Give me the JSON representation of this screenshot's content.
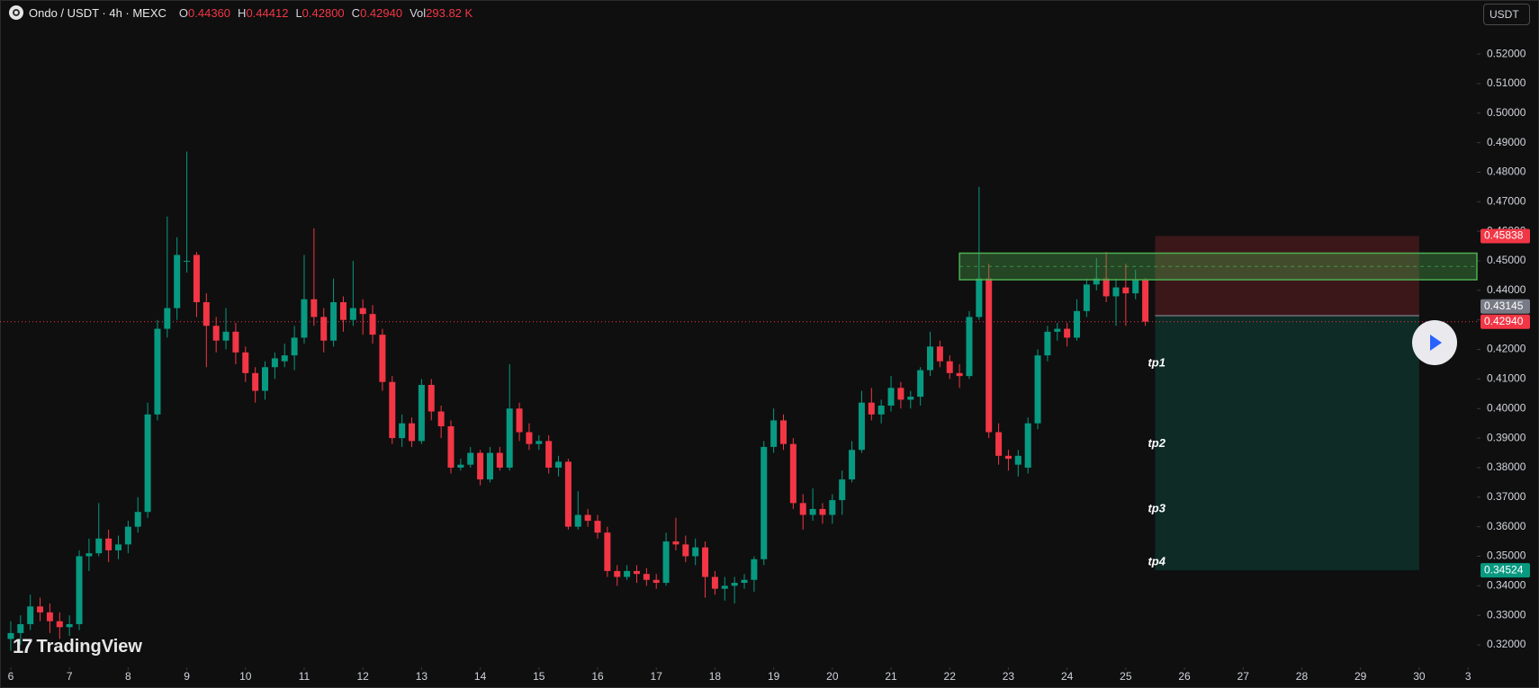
{
  "chart_data": {
    "type": "candlestick",
    "legend": {
      "symbol": "Ondo / USDT · 4h · MEXC",
      "items": [
        {
          "key": "O",
          "value": "0.44360"
        },
        {
          "key": "H",
          "value": "0.44412"
        },
        {
          "key": "L",
          "value": "0.42800"
        },
        {
          "key": "C",
          "value": "0.42940"
        },
        {
          "key": "Vol",
          "value": "293.82 K"
        }
      ]
    },
    "currency": "USDT",
    "watermark": "TradingView",
    "up_color": "#089981",
    "down_color": "#f23645",
    "open": [
      0.322,
      0.324,
      0.327,
      0.333,
      0.331,
      0.328,
      0.326,
      0.327,
      0.35,
      0.351,
      0.356,
      0.352,
      0.354,
      0.36,
      0.365,
      0.398,
      0.427,
      0.434,
      0.45,
      0.452,
      0.436,
      0.428,
      0.423,
      0.426,
      0.419,
      0.412,
      0.406,
      0.414,
      0.416,
      0.418,
      0.424,
      0.437,
      0.431,
      0.423,
      0.436,
      0.43,
      0.434,
      0.432,
      0.425,
      0.409,
      0.39,
      0.395,
      0.389,
      0.408,
      0.399,
      0.394,
      0.38,
      0.381,
      0.385,
      0.376,
      0.385,
      0.38,
      0.4,
      0.392,
      0.388,
      0.389,
      0.38,
      0.382,
      0.36,
      0.364,
      0.362,
      0.358,
      0.345,
      0.343,
      0.345,
      0.344,
      0.342,
      0.341,
      0.355,
      0.354,
      0.35,
      0.353,
      0.343,
      0.339,
      0.34,
      0.341,
      0.342,
      0.349,
      0.387,
      0.396,
      0.388,
      0.368,
      0.364,
      0.366,
      0.364,
      0.369,
      0.376,
      0.386,
      0.402,
      0.398,
      0.401,
      0.407,
      0.403,
      0.404,
      0.413,
      0.421,
      0.416,
      0.412,
      0.411,
      0.431,
      0.444,
      0.392,
      0.384,
      0.381,
      0.38,
      0.395,
      0.418,
      0.426,
      0.427,
      0.424,
      0.433,
      0.442,
      0.444,
      0.438,
      0.441,
      0.439,
      0.4436
    ],
    "close": [
      0.324,
      0.327,
      0.333,
      0.331,
      0.328,
      0.326,
      0.327,
      0.35,
      0.351,
      0.356,
      0.352,
      0.354,
      0.36,
      0.365,
      0.398,
      0.427,
      0.434,
      0.452,
      0.45,
      0.436,
      0.428,
      0.423,
      0.426,
      0.419,
      0.412,
      0.406,
      0.414,
      0.417,
      0.418,
      0.424,
      0.437,
      0.431,
      0.423,
      0.436,
      0.43,
      0.434,
      0.432,
      0.425,
      0.409,
      0.39,
      0.395,
      0.389,
      0.408,
      0.399,
      0.394,
      0.38,
      0.381,
      0.385,
      0.376,
      0.385,
      0.38,
      0.4,
      0.392,
      0.388,
      0.389,
      0.38,
      0.382,
      0.36,
      0.364,
      0.362,
      0.358,
      0.345,
      0.343,
      0.345,
      0.344,
      0.342,
      0.341,
      0.355,
      0.354,
      0.35,
      0.353,
      0.343,
      0.339,
      0.34,
      0.341,
      0.342,
      0.349,
      0.387,
      0.396,
      0.388,
      0.368,
      0.364,
      0.366,
      0.364,
      0.369,
      0.376,
      0.386,
      0.402,
      0.398,
      0.401,
      0.407,
      0.403,
      0.404,
      0.413,
      0.421,
      0.416,
      0.412,
      0.411,
      0.431,
      0.444,
      0.392,
      0.384,
      0.383,
      0.384,
      0.395,
      0.418,
      0.426,
      0.427,
      0.424,
      0.433,
      0.442,
      0.444,
      0.438,
      0.441,
      0.439,
      0.4436,
      0.4294
    ],
    "high": [
      0.328,
      0.33,
      0.337,
      0.336,
      0.334,
      0.331,
      0.33,
      0.352,
      0.356,
      0.368,
      0.359,
      0.357,
      0.362,
      0.37,
      0.402,
      0.43,
      0.465,
      0.458,
      0.487,
      0.453,
      0.439,
      0.431,
      0.434,
      0.429,
      0.421,
      0.414,
      0.416,
      0.419,
      0.422,
      0.428,
      0.452,
      0.461,
      0.434,
      0.444,
      0.438,
      0.45,
      0.437,
      0.435,
      0.427,
      0.411,
      0.398,
      0.397,
      0.41,
      0.41,
      0.401,
      0.396,
      0.383,
      0.387,
      0.386,
      0.387,
      0.387,
      0.415,
      0.402,
      0.395,
      0.391,
      0.391,
      0.384,
      0.383,
      0.372,
      0.366,
      0.364,
      0.36,
      0.347,
      0.347,
      0.347,
      0.346,
      0.344,
      0.358,
      0.363,
      0.357,
      0.356,
      0.355,
      0.345,
      0.343,
      0.343,
      0.344,
      0.35,
      0.389,
      0.4,
      0.398,
      0.39,
      0.371,
      0.373,
      0.368,
      0.371,
      0.379,
      0.389,
      0.406,
      0.407,
      0.403,
      0.411,
      0.409,
      0.406,
      0.414,
      0.426,
      0.423,
      0.418,
      0.415,
      0.433,
      0.475,
      0.449,
      0.395,
      0.386,
      0.386,
      0.397,
      0.42,
      0.428,
      0.429,
      0.429,
      0.437,
      0.444,
      0.451,
      0.453,
      0.444,
      0.449,
      0.447,
      0.44412
    ],
    "low": [
      0.318,
      0.32,
      0.325,
      0.328,
      0.324,
      0.322,
      0.323,
      0.325,
      0.345,
      0.35,
      0.348,
      0.349,
      0.351,
      0.358,
      0.363,
      0.396,
      0.424,
      0.43,
      0.446,
      0.431,
      0.414,
      0.419,
      0.42,
      0.415,
      0.409,
      0.402,
      0.403,
      0.41,
      0.414,
      0.413,
      0.422,
      0.428,
      0.419,
      0.421,
      0.426,
      0.428,
      0.425,
      0.422,
      0.406,
      0.388,
      0.387,
      0.387,
      0.388,
      0.396,
      0.39,
      0.378,
      0.379,
      0.38,
      0.374,
      0.375,
      0.379,
      0.379,
      0.389,
      0.386,
      0.386,
      0.378,
      0.377,
      0.359,
      0.359,
      0.36,
      0.356,
      0.343,
      0.34,
      0.342,
      0.341,
      0.34,
      0.339,
      0.34,
      0.352,
      0.348,
      0.347,
      0.336,
      0.337,
      0.335,
      0.334,
      0.339,
      0.338,
      0.347,
      0.385,
      0.386,
      0.366,
      0.359,
      0.362,
      0.361,
      0.361,
      0.364,
      0.375,
      0.385,
      0.396,
      0.395,
      0.399,
      0.4,
      0.4,
      0.401,
      0.411,
      0.414,
      0.41,
      0.407,
      0.41,
      0.43,
      0.39,
      0.381,
      0.379,
      0.377,
      0.378,
      0.393,
      0.416,
      0.423,
      0.421,
      0.423,
      0.431,
      0.44,
      0.436,
      0.428,
      0.428,
      0.437,
      0.428
    ],
    "xlim": [
      -1.1,
      149.9
    ],
    "xticks": [
      {
        "value": 0,
        "label": "6"
      },
      {
        "value": 6,
        "label": "7"
      },
      {
        "value": 12,
        "label": "8"
      },
      {
        "value": 18,
        "label": "9"
      },
      {
        "value": 24,
        "label": "10"
      },
      {
        "value": 30,
        "label": "11"
      },
      {
        "value": 36,
        "label": "12"
      },
      {
        "value": 42,
        "label": "13"
      },
      {
        "value": 48,
        "label": "14"
      },
      {
        "value": 54,
        "label": "15"
      },
      {
        "value": 60,
        "label": "16"
      },
      {
        "value": 66,
        "label": "17"
      },
      {
        "value": 72,
        "label": "18"
      },
      {
        "value": 78,
        "label": "19"
      },
      {
        "value": 84,
        "label": "20"
      },
      {
        "value": 90,
        "label": "21"
      },
      {
        "value": 96,
        "label": "22"
      },
      {
        "value": 102,
        "label": "23"
      },
      {
        "value": 108,
        "label": "24"
      },
      {
        "value": 114,
        "label": "25"
      },
      {
        "value": 120,
        "label": "26"
      },
      {
        "value": 126,
        "label": "27"
      },
      {
        "value": 132,
        "label": "28"
      },
      {
        "value": 138,
        "label": "29"
      },
      {
        "value": 144,
        "label": "30"
      },
      {
        "value": 149,
        "label": "3"
      }
    ],
    "ylim": [
      0.3124,
      0.5383
    ],
    "yticks": [
      {
        "value": 0.32,
        "label": "0.32000"
      },
      {
        "value": 0.33,
        "label": "0.33000"
      },
      {
        "value": 0.34,
        "label": "0.34000"
      },
      {
        "value": 0.35,
        "label": "0.35000"
      },
      {
        "value": 0.36,
        "label": "0.36000"
      },
      {
        "value": 0.37,
        "label": "0.37000"
      },
      {
        "value": 0.38,
        "label": "0.38000"
      },
      {
        "value": 0.39,
        "label": "0.39000"
      },
      {
        "value": 0.4,
        "label": "0.40000"
      },
      {
        "value": 0.41,
        "label": "0.41000"
      },
      {
        "value": 0.42,
        "label": "0.42000"
      },
      {
        "value": 0.43,
        "label": "0.43000"
      },
      {
        "value": 0.44,
        "label": "0.44000"
      },
      {
        "value": 0.45,
        "label": "0.45000"
      },
      {
        "value": 0.46,
        "label": "0.46000"
      },
      {
        "value": 0.47,
        "label": "0.47000"
      },
      {
        "value": 0.48,
        "label": "0.48000"
      },
      {
        "value": 0.49,
        "label": "0.49000"
      },
      {
        "value": 0.5,
        "label": "0.50000"
      },
      {
        "value": 0.51,
        "label": "0.51000"
      },
      {
        "value": 0.52,
        "label": "0.52000"
      }
    ],
    "grid": false,
    "zone": {
      "ylim": [
        0.4436,
        0.4526
      ],
      "x_start": 97,
      "color": "#4caf50"
    },
    "position": {
      "x_range": [
        117,
        144
      ],
      "stop": {
        "value": 0.45838,
        "label": "0.45838"
      },
      "entry": {
        "value": 0.43145,
        "label": "0.43145"
      },
      "target": {
        "value": 0.34524,
        "label": "0.34524"
      }
    },
    "targets": [
      {
        "label": "tp1",
        "value": 0.4153
      },
      {
        "label": "tp2",
        "value": 0.388
      },
      {
        "label": "tp3",
        "value": 0.366
      },
      {
        "label": "tp4",
        "value": 0.348
      }
    ]
  }
}
